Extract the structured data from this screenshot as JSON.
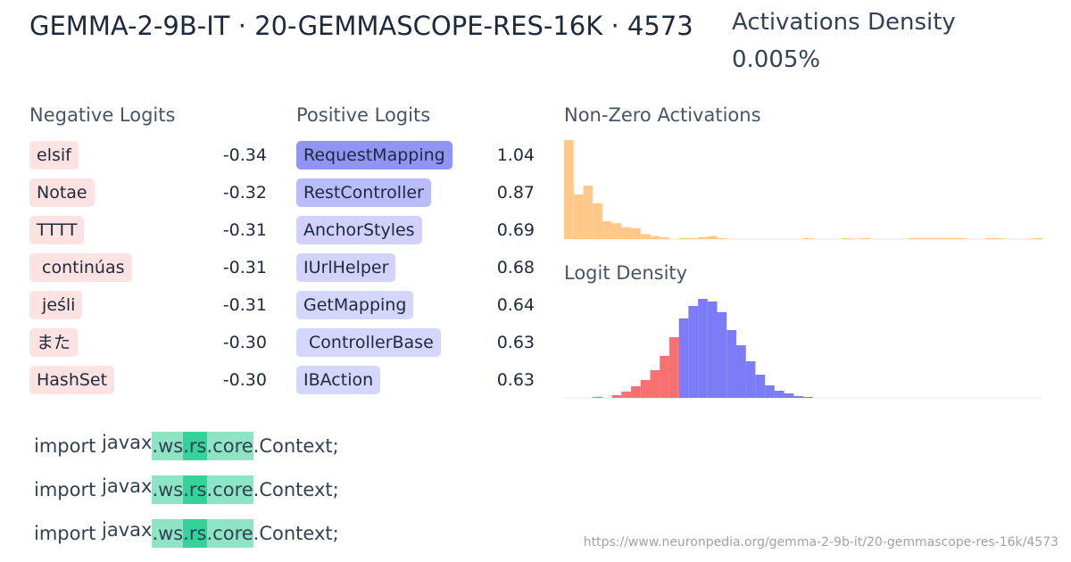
{
  "header": {
    "title": "GEMMA-2-9B-IT · 20-GEMMASCOPE-RES-16K · 4573",
    "density_label": "Activations Density",
    "density_value": "0.005%"
  },
  "negative_logits": {
    "title": "Negative Logits",
    "tokens": [
      "elsif",
      "Notae",
      "TTTT",
      " continúas",
      " jeśli",
      "また",
      "HashSet"
    ],
    "values": [
      -0.34,
      -0.32,
      -0.31,
      -0.31,
      -0.31,
      -0.3,
      -0.3
    ],
    "value_labels": [
      "-0.34",
      "-0.32",
      "-0.31",
      "-0.31",
      "-0.31",
      "-0.30",
      "-0.30"
    ],
    "color": "#fde2e2"
  },
  "positive_logits": {
    "title": "Positive Logits",
    "tokens": [
      "RequestMapping",
      "RestController",
      "AnchorStyles",
      "IUrlHelper",
      "GetMapping",
      " ControllerBase",
      "IBAction"
    ],
    "values": [
      1.04,
      0.87,
      0.69,
      0.68,
      0.64,
      0.63,
      0.63
    ],
    "color": "#6366f1"
  },
  "nonzero_activations": {
    "title": "Non-Zero Activations",
    "color": "#fdc98a",
    "values": [
      100,
      45,
      54,
      36,
      18,
      16,
      12,
      11,
      5,
      3,
      2,
      0,
      1,
      1,
      2,
      3,
      1,
      0,
      0,
      0,
      0,
      0,
      0,
      0,
      0,
      1,
      0,
      0,
      0,
      1,
      0,
      1,
      0,
      0,
      0,
      0,
      1,
      1,
      1,
      1,
      1,
      1,
      0,
      0,
      1,
      1,
      0,
      0,
      0,
      1
    ],
    "ylim": [
      0,
      100
    ]
  },
  "logit_density": {
    "title": "Logit Density",
    "ylim": [
      0,
      113
    ],
    "negative": {
      "color": "#f87171",
      "values": [
        0,
        0,
        0,
        1,
        0,
        3,
        7,
        13,
        20,
        31,
        47,
        68
      ]
    },
    "positive": {
      "color": "#7c7cf8",
      "values": [
        89,
        103,
        111,
        108,
        96,
        76,
        59,
        41,
        26,
        14,
        8,
        5,
        2,
        1
      ]
    }
  },
  "examples": [
    {
      "tokens": [
        "import",
        " javax",
        ".ws",
        ".rs",
        ".core",
        ".Context;"
      ],
      "activations": [
        0,
        0,
        0.5,
        1,
        0.5,
        0
      ]
    },
    {
      "tokens": [
        "import",
        " javax",
        ".ws",
        ".rs",
        ".core",
        ".Context;"
      ],
      "activations": [
        0,
        0,
        0.5,
        1,
        0.5,
        0
      ]
    },
    {
      "tokens": [
        "import",
        " javax",
        ".ws",
        ".rs",
        ".core",
        ".Context;"
      ],
      "activations": [
        0,
        0,
        0.5,
        1,
        0.5,
        0
      ]
    }
  ],
  "footer": {
    "url": "https://www.neuronpedia.org/gemma-2-9b-it/20-gemmascope-res-16k/4573"
  }
}
